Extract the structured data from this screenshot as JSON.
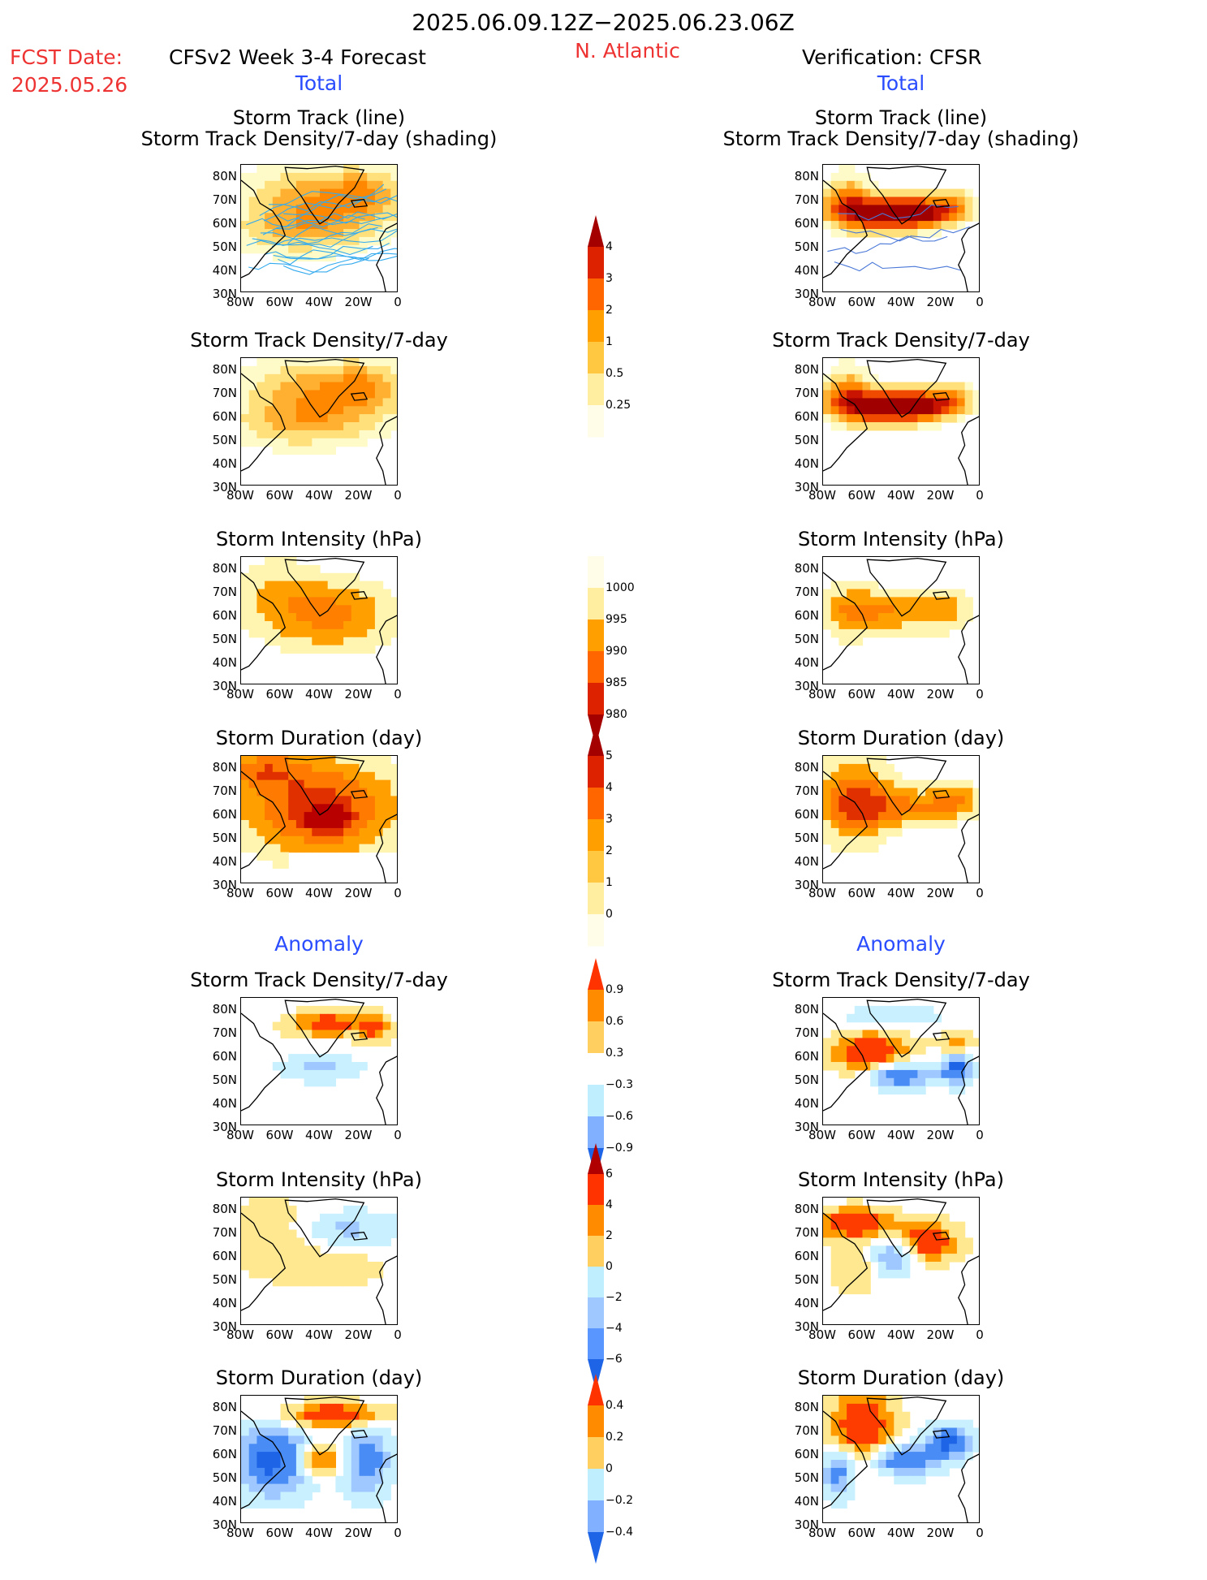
{
  "header": {
    "date_range": "2025.06.09.12Z−2025.06.23.06Z",
    "fcst_label": "FCST Date:",
    "fcst_date": "2025.05.26",
    "left_model": "CFSv2 Week 3-4 Forecast",
    "region": "N. Atlantic",
    "right_model": "Verification: CFSR",
    "total_label": "Total",
    "anomaly_label": "Anomaly"
  },
  "panel_titles": {
    "track": [
      "Storm Track (line)",
      "Storm Track Density/7-day (shading)"
    ],
    "density": "Storm Track Density/7-day",
    "intensity": "Storm Intensity (hPa)",
    "duration": "Storm Duration (day)"
  },
  "axes": {
    "lat_ticks": [
      "80N",
      "70N",
      "60N",
      "50N",
      "40N",
      "30N"
    ],
    "lon_ticks": [
      "80W",
      "60W",
      "40W",
      "20W",
      "0"
    ]
  },
  "chart_data": [
    {
      "type": "heatmap",
      "title": "Storm Track (line) / Storm Track Density/7-day (shading)",
      "panel": "forecast-total",
      "colorbar": [
        0.25,
        0.5,
        1,
        2,
        3,
        4
      ]
    },
    {
      "type": "heatmap",
      "title": "Storm Track Density/7-day",
      "panel": "forecast-total",
      "colorbar": [
        0.25,
        0.5,
        1,
        2,
        3,
        4
      ]
    },
    {
      "type": "heatmap",
      "title": "Storm Intensity (hPa)",
      "panel": "forecast-total",
      "colorbar": [
        1000,
        995,
        990,
        985,
        980
      ]
    },
    {
      "type": "heatmap",
      "title": "Storm Duration (day)",
      "panel": "forecast-total",
      "colorbar": [
        0,
        1,
        2,
        3,
        4,
        5
      ]
    },
    {
      "type": "heatmap",
      "title": "Storm Track Density/7-day",
      "panel": "forecast-anomaly",
      "colorbar": [
        0.9,
        0.6,
        0.3,
        -0.3,
        -0.6,
        -0.9
      ]
    },
    {
      "type": "heatmap",
      "title": "Storm Intensity (hPa)",
      "panel": "forecast-anomaly",
      "colorbar": [
        6,
        4,
        2,
        0,
        -2,
        -4,
        -6
      ]
    },
    {
      "type": "heatmap",
      "title": "Storm Duration (day)",
      "panel": "forecast-anomaly",
      "colorbar": [
        0.4,
        0.2,
        0,
        -0.2,
        -0.4
      ]
    }
  ],
  "colorbars": {
    "density": {
      "labels": [
        "4",
        "3",
        "2",
        "1",
        "0.5",
        "0.25"
      ],
      "colors": [
        "#a50000",
        "#dd2200",
        "#ff6600",
        "#ffa000",
        "#ffc840",
        "#ffeea0",
        "#fffde8"
      ]
    },
    "intensity": {
      "labels": [
        "1000",
        "995",
        "990",
        "985",
        "980"
      ],
      "colors": [
        "#fffde8",
        "#ffeea0",
        "#ffa000",
        "#ff6600",
        "#dd2200",
        "#a50000"
      ]
    },
    "duration": {
      "labels": [
        "5",
        "4",
        "3",
        "2",
        "1",
        "0"
      ],
      "colors": [
        "#a50000",
        "#dd2200",
        "#ff6600",
        "#ffa000",
        "#ffc840",
        "#ffeea0",
        "#fffde8"
      ]
    },
    "anom_density": {
      "labels": [
        "0.9",
        "0.6",
        "0.3",
        "−0.3",
        "−0.6",
        "−0.9"
      ],
      "colors": [
        "#ff3300",
        "#ff8c00",
        "#ffd060",
        "#ffffff",
        "#bfeeff",
        "#80b0ff",
        "#1e64e6"
      ]
    },
    "anom_intensity": {
      "labels": [
        "6",
        "4",
        "2",
        "0",
        "−2",
        "−4",
        "−6"
      ],
      "colors": [
        "#b00000",
        "#ff3300",
        "#ff8c00",
        "#ffd060",
        "#bfeeff",
        "#9ec8ff",
        "#5a96ff",
        "#1e64e6"
      ]
    },
    "anom_duration": {
      "labels": [
        "0.4",
        "0.2",
        "0",
        "−0.2",
        "−0.4"
      ],
      "colors": [
        "#ff3300",
        "#ff8c00",
        "#ffd060",
        "#bfeeff",
        "#80b0ff",
        "#1e64e6"
      ]
    }
  }
}
